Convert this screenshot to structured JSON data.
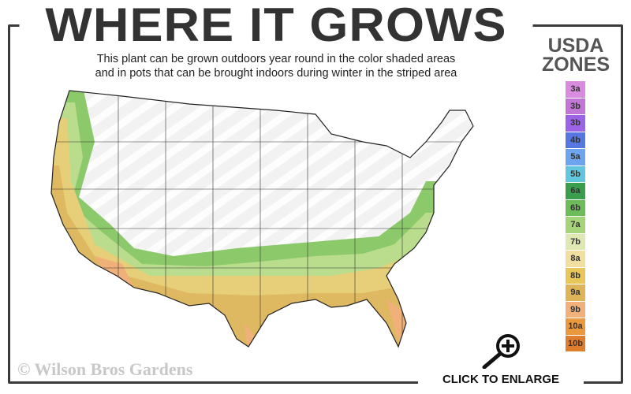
{
  "header": {
    "title": "WHERE IT GROWS",
    "subtitle_line1": "This plant can be grown outdoors year round in the color shaded areas",
    "subtitle_line2": "and in pots that can be brought indoors during winter in the striped area"
  },
  "legend": {
    "title_line1": "USDA",
    "title_line2": "ZONES",
    "zones": [
      {
        "label": "3a",
        "color": "#d98be0"
      },
      {
        "label": "3b",
        "color": "#c277d6"
      },
      {
        "label": "3b",
        "color": "#9b63e6"
      },
      {
        "label": "4b",
        "color": "#5676e0"
      },
      {
        "label": "5a",
        "color": "#6ea4ee"
      },
      {
        "label": "5b",
        "color": "#62c6de"
      },
      {
        "label": "6a",
        "color": "#3a9e4c"
      },
      {
        "label": "6b",
        "color": "#6cbc5a"
      },
      {
        "label": "7a",
        "color": "#a6d47a"
      },
      {
        "label": "7b",
        "color": "#dfe8b2"
      },
      {
        "label": "8a",
        "color": "#f0dfa0"
      },
      {
        "label": "8b",
        "color": "#e9c65a"
      },
      {
        "label": "9a",
        "color": "#ddb458"
      },
      {
        "label": "9b",
        "color": "#f0b27a"
      },
      {
        "label": "10a",
        "color": "#e99a3e"
      },
      {
        "label": "10b",
        "color": "#e07e30"
      }
    ]
  },
  "map": {
    "icon": "usda-zone-map"
  },
  "footer": {
    "copyright": "© Wilson Bros Gardens",
    "enlarge_label": "CLICK TO ENLARGE",
    "enlarge_icon": "magnifier-plus-icon"
  }
}
